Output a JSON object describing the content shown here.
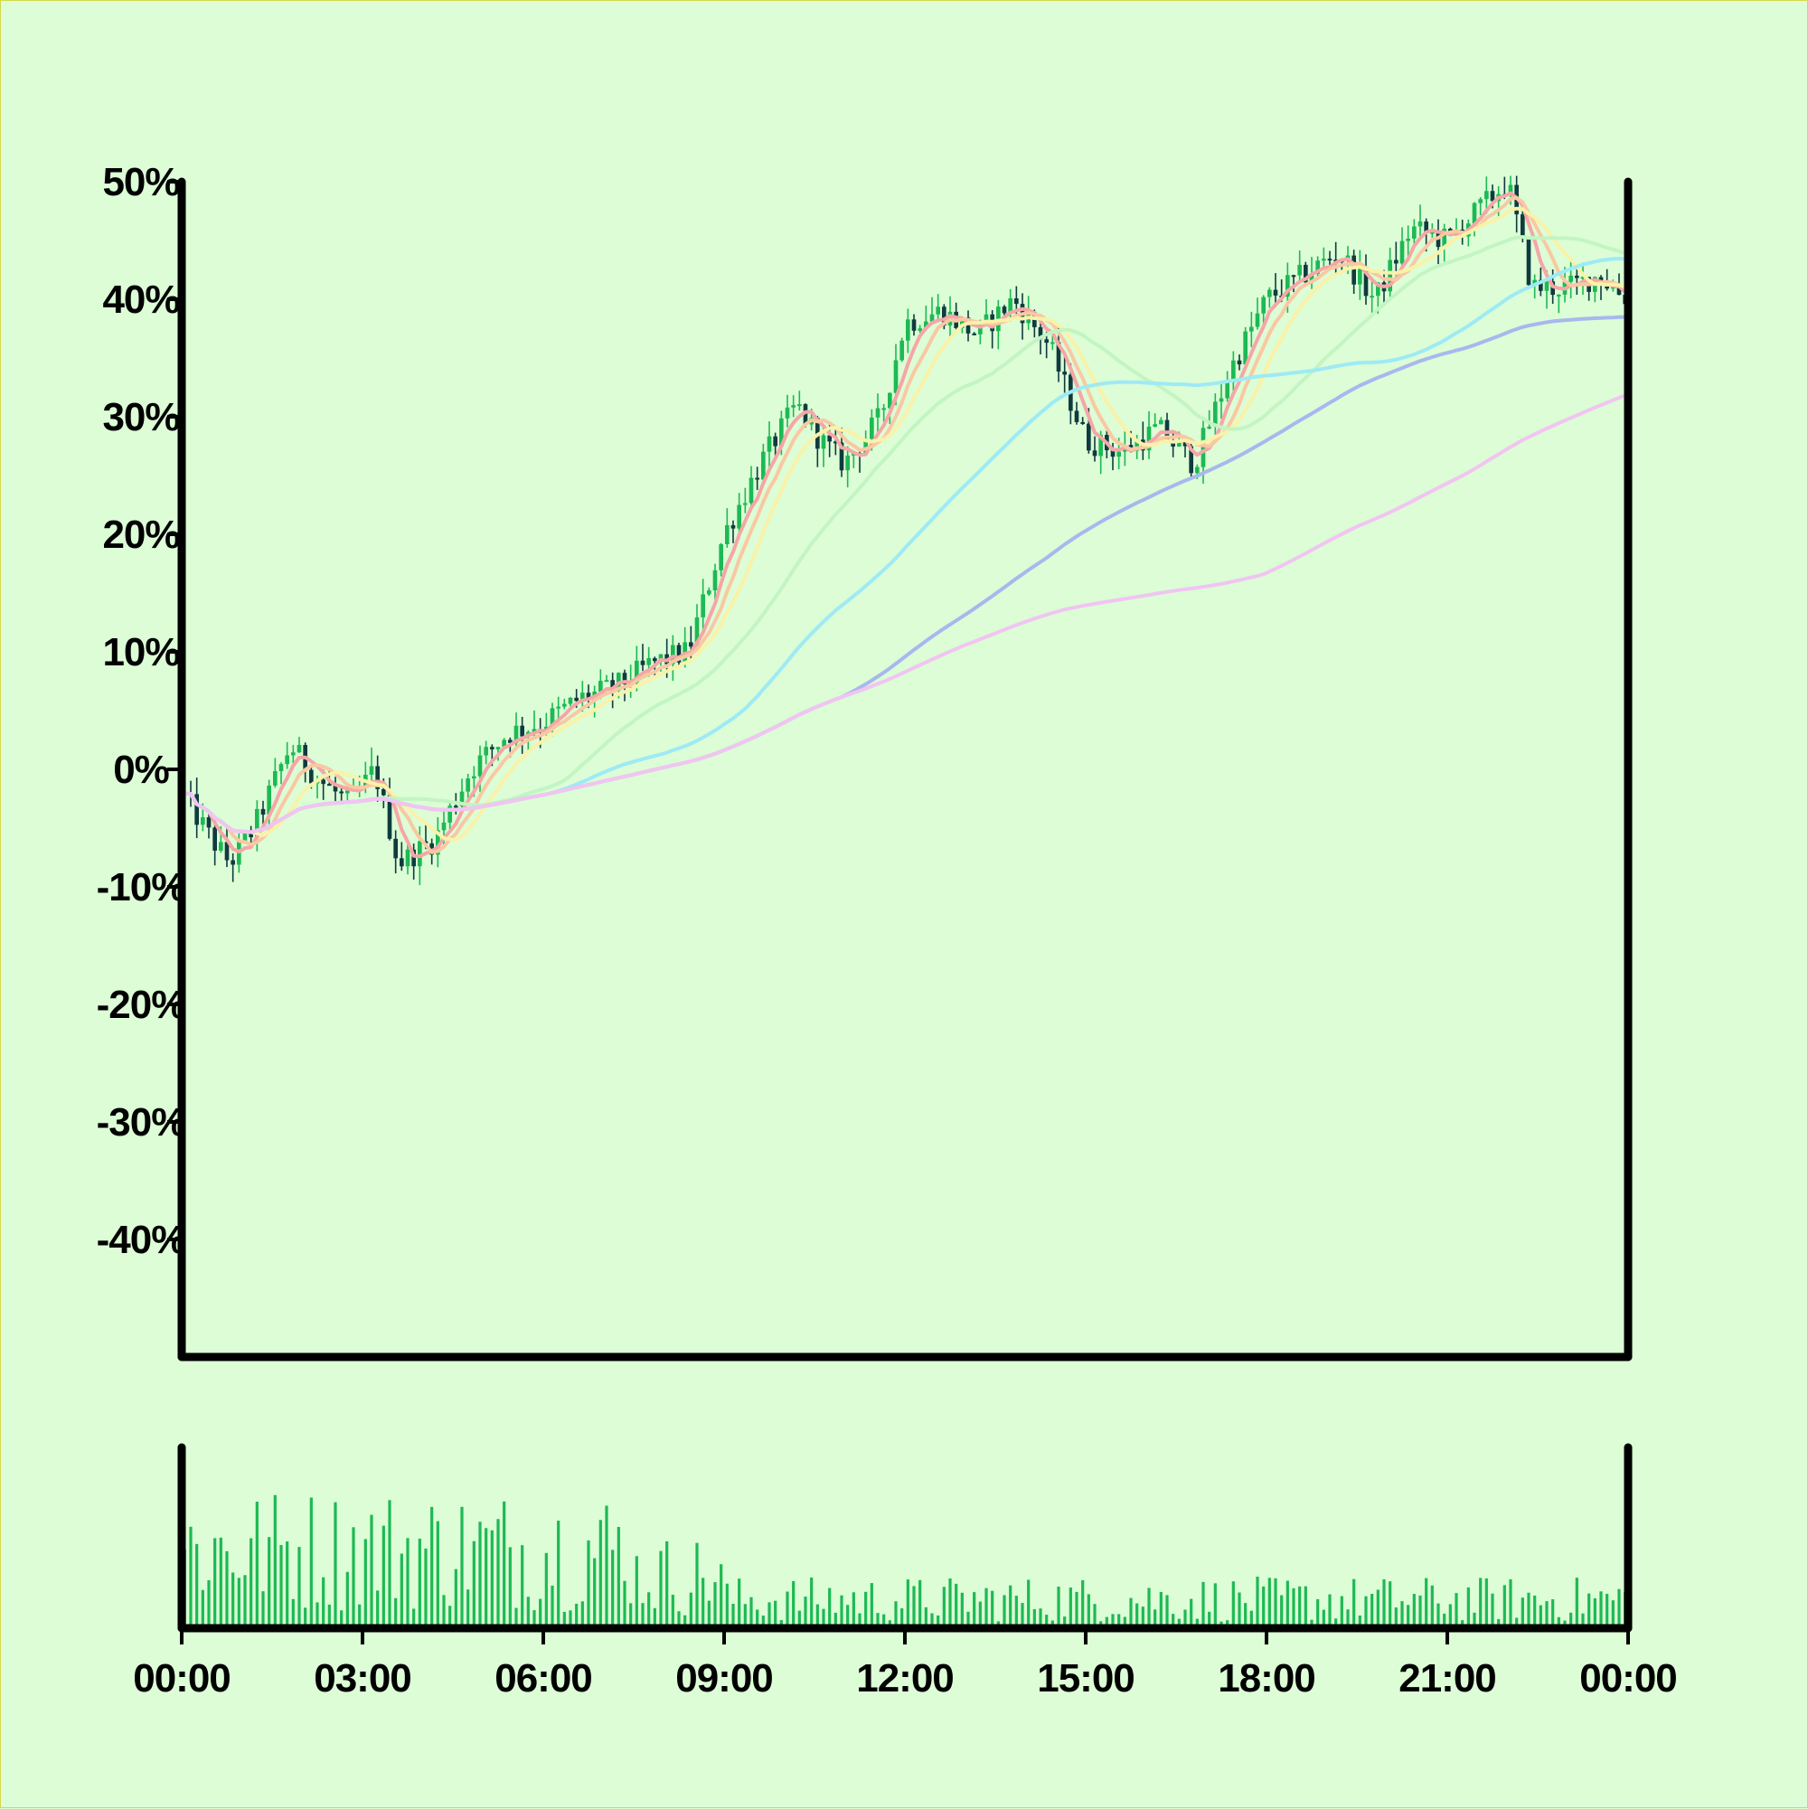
{
  "chart_data": {
    "type": "candlestick",
    "subtype": "price with moving averages and volume panel",
    "colors": {
      "background": "#dcfdd6",
      "up_candle": "#1db954",
      "down_candle": "#0f3b3f",
      "volume": "#1db954",
      "axis": "#000000",
      "frame": "#d4d84a"
    },
    "y_axis": {
      "unit": "%",
      "ylim": [
        -50,
        50
      ],
      "ticks": [
        "50%",
        "40%",
        "30%",
        "20%",
        "10%",
        "0%",
        "-10%",
        "-20%",
        "-30%",
        "-40%"
      ]
    },
    "x_axis": {
      "range_hours": [
        0,
        24
      ],
      "ticks": [
        "00:00",
        "03:00",
        "06:00",
        "09:00",
        "12:00",
        "15:00",
        "18:00",
        "21:00",
        "00:00"
      ]
    },
    "grid": false,
    "legend": "none",
    "close_path": {
      "hours": [
        0,
        0.5,
        0.8,
        1.2,
        1.8,
        2.3,
        2.8,
        3.2,
        3.6,
        4.2,
        4.8,
        5.4,
        6.0,
        6.6,
        7.2,
        7.8,
        8.4,
        9.0,
        9.6,
        10.2,
        10.6,
        11.0,
        11.6,
        12.0,
        12.6,
        13.2,
        13.8,
        14.4,
        15.0,
        15.6,
        16.2,
        16.8,
        17.4,
        18.0,
        18.6,
        19.2,
        19.8,
        20.4,
        21.0,
        21.6,
        22.0,
        22.4,
        23.0,
        23.5,
        24.0
      ],
      "values": [
        -2,
        -6,
        -8,
        -5,
        2,
        -1,
        -3,
        0,
        -8,
        -6,
        0,
        3,
        4,
        6,
        7,
        9,
        10,
        20,
        26,
        31,
        28,
        26,
        30,
        38,
        39,
        37,
        40,
        36,
        28,
        27,
        29,
        26,
        34,
        40,
        42,
        44,
        40,
        46,
        45,
        48,
        50,
        41,
        41,
        42,
        40
      ]
    },
    "moving_averages": [
      {
        "color": "#f5a6a6",
        "window": 5
      },
      {
        "color": "#f9c8a2",
        "window": 8
      },
      {
        "color": "#f9f2a8",
        "window": 12
      },
      {
        "color": "#c2f5c2",
        "window": 30
      },
      {
        "color": "#9eeaf5",
        "window": 60
      },
      {
        "color": "#a9b7ee",
        "window": 110
      },
      {
        "color": "#f2c4f2",
        "window": 180
      }
    ]
  }
}
